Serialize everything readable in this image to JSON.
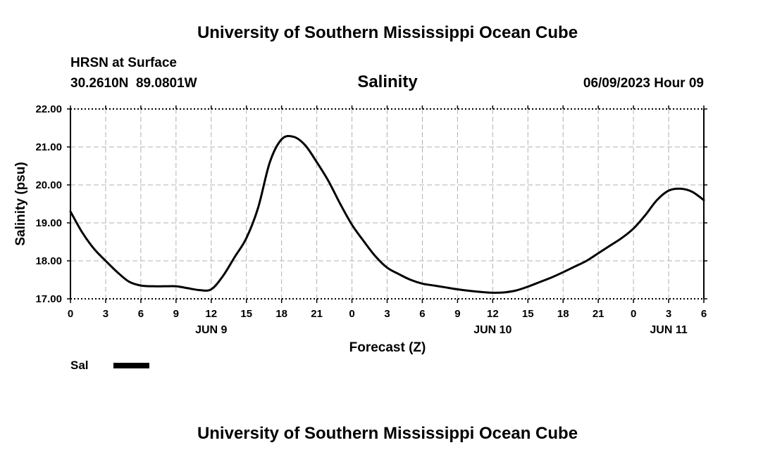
{
  "header": {
    "top_title": "University of Southern Mississippi Ocean Cube",
    "station": "HRSN at Surface",
    "coords": "30.2610N  89.0801W",
    "title": "Salinity",
    "datetime": "06/09/2023 Hour 09",
    "bottom_title": "University of Southern Mississippi Ocean Cube"
  },
  "chart_data": {
    "type": "line",
    "title": "Salinity",
    "xlabel": "Forecast (Z)",
    "ylabel": "Salinity (psu)",
    "xlim": [
      0,
      54
    ],
    "ylim": [
      17.0,
      22.0
    ],
    "grid": true,
    "x_ticks": [
      0,
      3,
      6,
      9,
      12,
      15,
      18,
      21,
      24,
      27,
      30,
      33,
      36,
      39,
      42,
      45,
      48,
      51,
      54
    ],
    "x_tick_labels": [
      "0",
      "3",
      "6",
      "9",
      "12",
      "15",
      "18",
      "21",
      "0",
      "3",
      "6",
      "9",
      "12",
      "15",
      "18",
      "21",
      "0",
      "3",
      "6"
    ],
    "y_ticks": [
      17.0,
      18.0,
      19.0,
      20.0,
      21.0,
      22.0
    ],
    "y_tick_labels": [
      "17.00",
      "18.00",
      "19.00",
      "20.00",
      "21.00",
      "22.00"
    ],
    "day_labels": [
      {
        "x": 12,
        "label": "JUN 9"
      },
      {
        "x": 36,
        "label": "JUN 10"
      },
      {
        "x": 51,
        "label": "JUN 11"
      }
    ],
    "series": [
      {
        "name": "Sal",
        "color": "#000000",
        "x": [
          0,
          1,
          2,
          3,
          4,
          5,
          6,
          7,
          8,
          9,
          10,
          11,
          12,
          13,
          14,
          15,
          16,
          17,
          18,
          19,
          20,
          21,
          22,
          23,
          24,
          25,
          26,
          27,
          28,
          29,
          30,
          31,
          32,
          33,
          34,
          35,
          36,
          37,
          38,
          39,
          40,
          41,
          42,
          43,
          44,
          45,
          46,
          47,
          48,
          49,
          50,
          51,
          52,
          53,
          54
        ],
        "values": [
          19.3,
          18.75,
          18.32,
          18.0,
          17.7,
          17.45,
          17.35,
          17.33,
          17.33,
          17.33,
          17.28,
          17.23,
          17.25,
          17.6,
          18.1,
          18.6,
          19.4,
          20.6,
          21.2,
          21.27,
          21.05,
          20.6,
          20.1,
          19.5,
          18.95,
          18.52,
          18.12,
          17.82,
          17.65,
          17.5,
          17.4,
          17.35,
          17.3,
          17.25,
          17.21,
          17.18,
          17.16,
          17.17,
          17.22,
          17.32,
          17.44,
          17.56,
          17.7,
          17.85,
          18.0,
          18.2,
          18.4,
          18.6,
          18.85,
          19.2,
          19.6,
          19.85,
          19.9,
          19.82,
          19.6
        ]
      }
    ],
    "legend": [
      {
        "label": "Sal",
        "color": "#000000"
      }
    ],
    "legend_position": "bottom-left"
  }
}
